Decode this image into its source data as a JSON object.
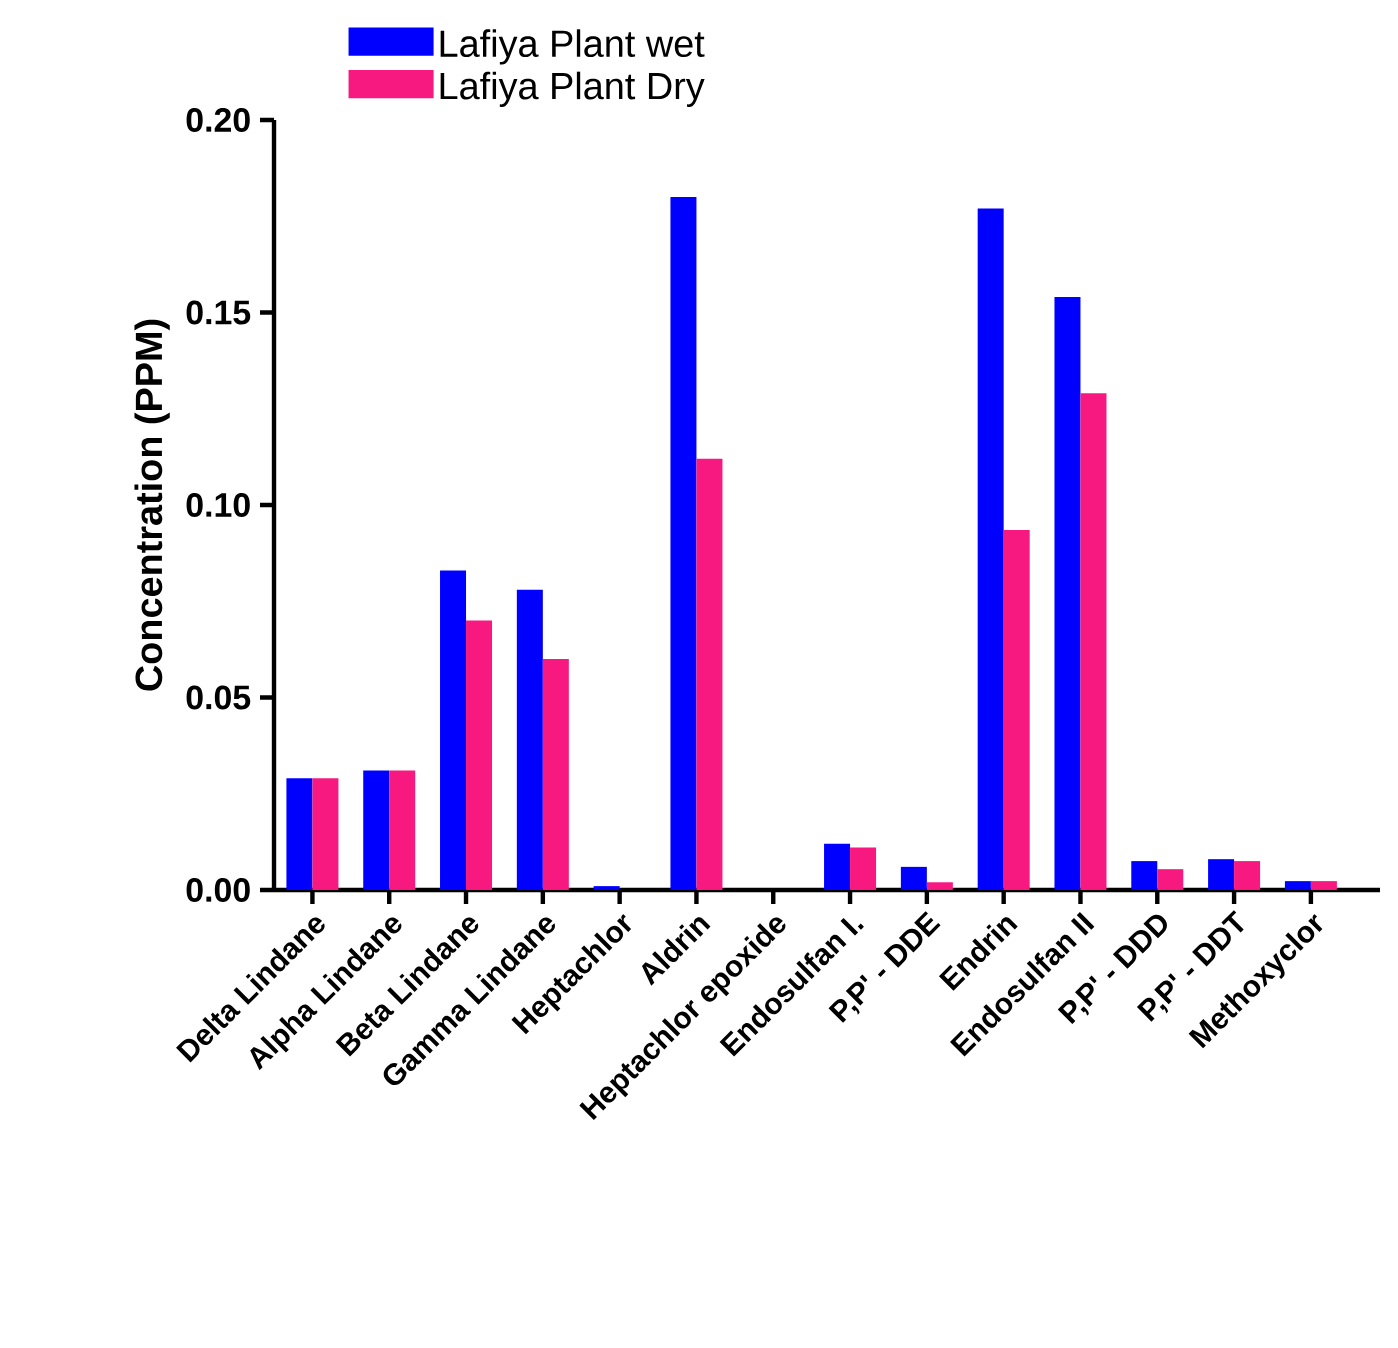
{
  "chart_data": {
    "type": "bar",
    "ylabel": "Concentration (PPM)",
    "categories": [
      "Delta Lindane",
      "Alpha Lindane",
      "Beta Lindane",
      "Gamma Lindane",
      "Heptachlor",
      "Aldrin",
      "Heptachlor epoxide",
      "Endosulfan I.",
      "P,P' - DDE",
      "Endrin",
      "Endosulfan II",
      "P,P' - DDD",
      "P,P' - DDT",
      "Methoxyclor"
    ],
    "series": [
      {
        "name": "Lafiya Plant wet",
        "color": "#0000ff",
        "values": [
          0.029,
          0.031,
          0.083,
          0.078,
          0.001,
          0.18,
          0,
          0.012,
          0.006,
          0.177,
          0.154,
          0.0075,
          0.008,
          0.0023
        ]
      },
      {
        "name": "Lafiya Plant Dry",
        "color": "#f7197f",
        "values": [
          0.029,
          0.031,
          0.07,
          0.06,
          0,
          0.112,
          0,
          0.011,
          0.002,
          0.0935,
          0.129,
          0.0054,
          0.0075,
          0.0023
        ]
      }
    ],
    "ylim": [
      0,
      0.2
    ],
    "yticks": [
      {
        "value": 0,
        "label": "0.00"
      },
      {
        "value": 0.05,
        "label": "0.05"
      },
      {
        "value": 0.1,
        "label": "0.10"
      },
      {
        "value": 0.15,
        "label": "0.15"
      },
      {
        "value": 0.2,
        "label": "0.20"
      }
    ],
    "legend": "top"
  }
}
